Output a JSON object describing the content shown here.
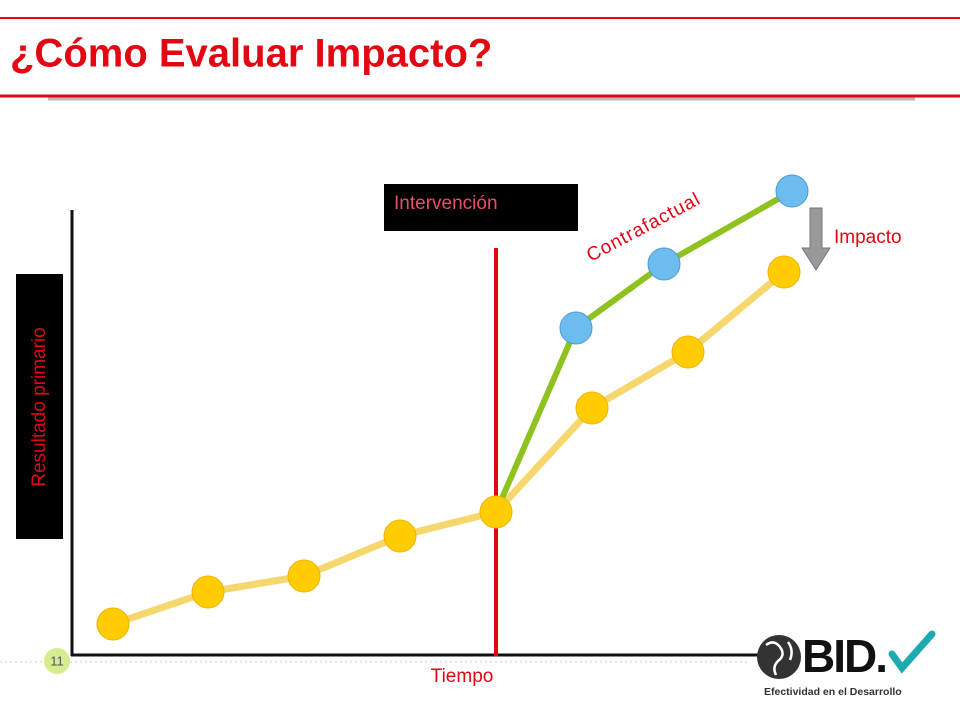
{
  "header": {
    "title": "¿Cómo Evaluar Impacto?"
  },
  "diagram": {
    "y_axis_label": "Resultado primario",
    "x_axis_label": "Tiempo",
    "intervention": "Intervención",
    "counterfactual": "Contrafactual",
    "impact": "Impacto"
  },
  "footer": {
    "slide_number": "11",
    "logo": "BID.",
    "logo_tagline": "Efectividad en el Desarrollo"
  }
}
